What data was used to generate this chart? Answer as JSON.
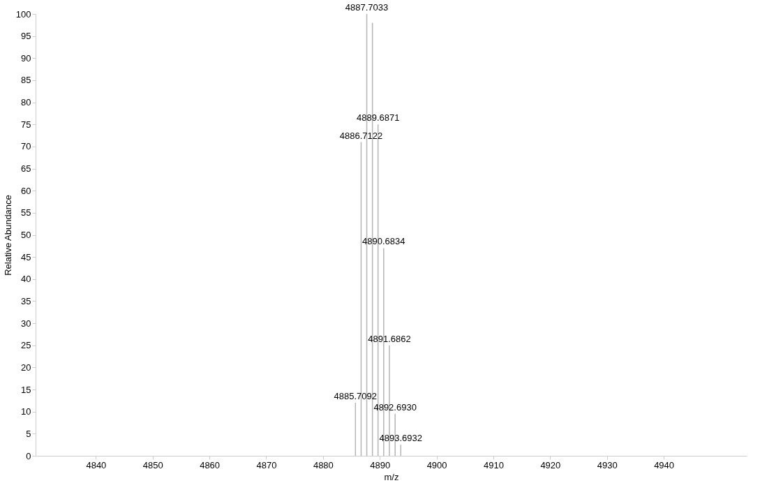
{
  "chart_data": {
    "type": "bar",
    "xlabel": "m/z",
    "ylabel": "Relative Abundance",
    "x": [
      4885.7092,
      4886.7122,
      4887.7033,
      4888.7,
      4889.6871,
      4890.6834,
      4891.6862,
      4892.693,
      4893.6932
    ],
    "values": [
      12,
      71,
      100,
      98,
      75,
      47,
      25,
      9.5,
      2.5
    ],
    "annotations": [
      {
        "text": "4885.7092",
        "x": 4885.7092,
        "y": 12
      },
      {
        "text": "4886.7122",
        "x": 4886.7122,
        "y": 71
      },
      {
        "text": "4887.7033",
        "x": 4887.7033,
        "y": 100
      },
      {
        "text": "4889.6871",
        "x": 4889.6871,
        "y": 75
      },
      {
        "text": "4890.6834",
        "x": 4890.6834,
        "y": 47
      },
      {
        "text": "4891.6862",
        "x": 4891.6862,
        "y": 25
      },
      {
        "text": "4892.6930",
        "x": 4892.693,
        "y": 9.5
      },
      {
        "text": "4893.6932",
        "x": 4893.6932,
        "y": 2.5
      }
    ],
    "color": "#b4b4b4",
    "xlim": [
      4830,
      4954
    ],
    "xticks": [
      4840,
      4850,
      4860,
      4870,
      4880,
      4890,
      4900,
      4910,
      4920,
      4930,
      4940
    ],
    "ylim": [
      0,
      100
    ],
    "yticks": [
      0,
      5,
      10,
      15,
      20,
      25,
      30,
      35,
      40,
      45,
      50,
      55,
      60,
      65,
      70,
      75,
      80,
      85,
      90,
      95,
      100
    ],
    "grid": false
  }
}
